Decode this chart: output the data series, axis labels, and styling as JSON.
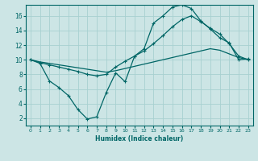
{
  "xlabel": "Humidex (Indice chaleur)",
  "bg_color": "#cce5e5",
  "line_color": "#006666",
  "grid_color": "#a8d0d0",
  "xlim": [
    -0.5,
    23.5
  ],
  "ylim": [
    1,
    17.5
  ],
  "xticks": [
    0,
    1,
    2,
    3,
    4,
    5,
    6,
    7,
    8,
    9,
    10,
    11,
    12,
    13,
    14,
    15,
    16,
    17,
    18,
    19,
    20,
    21,
    22,
    23
  ],
  "yticks": [
    2,
    4,
    6,
    8,
    10,
    12,
    14,
    16
  ],
  "curve1_x": [
    0,
    1,
    2,
    3,
    4,
    5,
    6,
    7,
    8,
    9,
    10,
    11,
    12,
    13,
    14,
    15,
    16,
    17,
    18,
    19,
    20,
    21,
    22,
    23
  ],
  "curve1_y": [
    10.0,
    9.5,
    7.1,
    6.2,
    5.1,
    3.2,
    1.9,
    2.2,
    5.5,
    8.2,
    7.0,
    10.5,
    11.5,
    15.0,
    16.0,
    17.2,
    17.5,
    17.0,
    15.3,
    14.2,
    13.0,
    12.3,
    10.0,
    10.1
  ],
  "curve2_x": [
    0,
    1,
    2,
    3,
    4,
    5,
    6,
    7,
    8,
    9,
    10,
    11,
    12,
    13,
    14,
    15,
    16,
    17,
    18,
    19,
    20,
    21,
    22,
    23
  ],
  "curve2_y": [
    10.0,
    9.7,
    9.5,
    9.3,
    9.1,
    8.9,
    8.7,
    8.5,
    8.3,
    8.5,
    8.8,
    9.1,
    9.4,
    9.7,
    10.0,
    10.3,
    10.6,
    10.9,
    11.2,
    11.5,
    11.3,
    10.8,
    10.3,
    10.0
  ],
  "curve3_x": [
    0,
    1,
    2,
    3,
    4,
    5,
    6,
    7,
    8,
    9,
    10,
    11,
    12,
    13,
    14,
    15,
    16,
    17,
    18,
    19,
    20,
    21,
    22,
    23
  ],
  "curve3_y": [
    10.0,
    9.6,
    9.3,
    9.0,
    8.7,
    8.4,
    8.0,
    7.8,
    8.0,
    9.0,
    9.8,
    10.5,
    11.2,
    12.2,
    13.3,
    14.5,
    15.5,
    16.0,
    15.2,
    14.3,
    13.5,
    12.2,
    10.5,
    10.0
  ]
}
